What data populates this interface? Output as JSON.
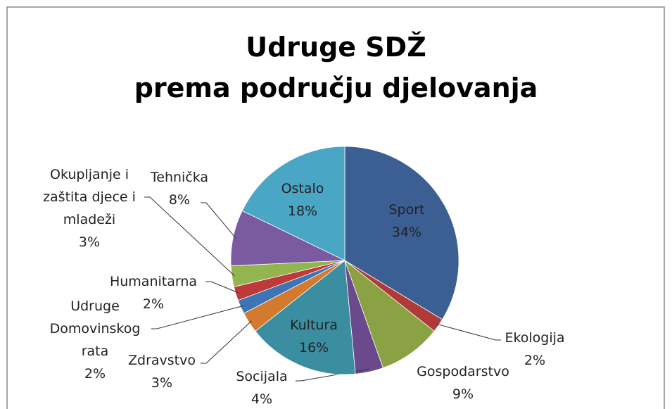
{
  "chart_data": {
    "type": "pie",
    "title": "Udruge SDŽ\nprema području djelovanja",
    "categories": [
      "Sport",
      "Ekologija",
      "Gospodarstvo",
      "Socijala",
      "Kultura",
      "Zdravstvo",
      "Udruge\nDomovinskog\nrata",
      "Humanitarna",
      "Okupljanje i\nzaštita djece i\nmladeži",
      "Tehnička",
      "Ostalo"
    ],
    "values": [
      34,
      2,
      9,
      4,
      16,
      3,
      2,
      2,
      3,
      8,
      18
    ],
    "value_labels": [
      "34%",
      "2%",
      "9%",
      "4%",
      "16%",
      "3%",
      "2%",
      "2%",
      "3%",
      "8%",
      "18%"
    ],
    "colors": [
      "#3c5f93",
      "#b03a37",
      "#8aa243",
      "#6a4a8c",
      "#3a8ea0",
      "#d47a2e",
      "#3d74b5",
      "#c0393a",
      "#93b54f",
      "#7a5aa0",
      "#4aa6c5"
    ]
  }
}
